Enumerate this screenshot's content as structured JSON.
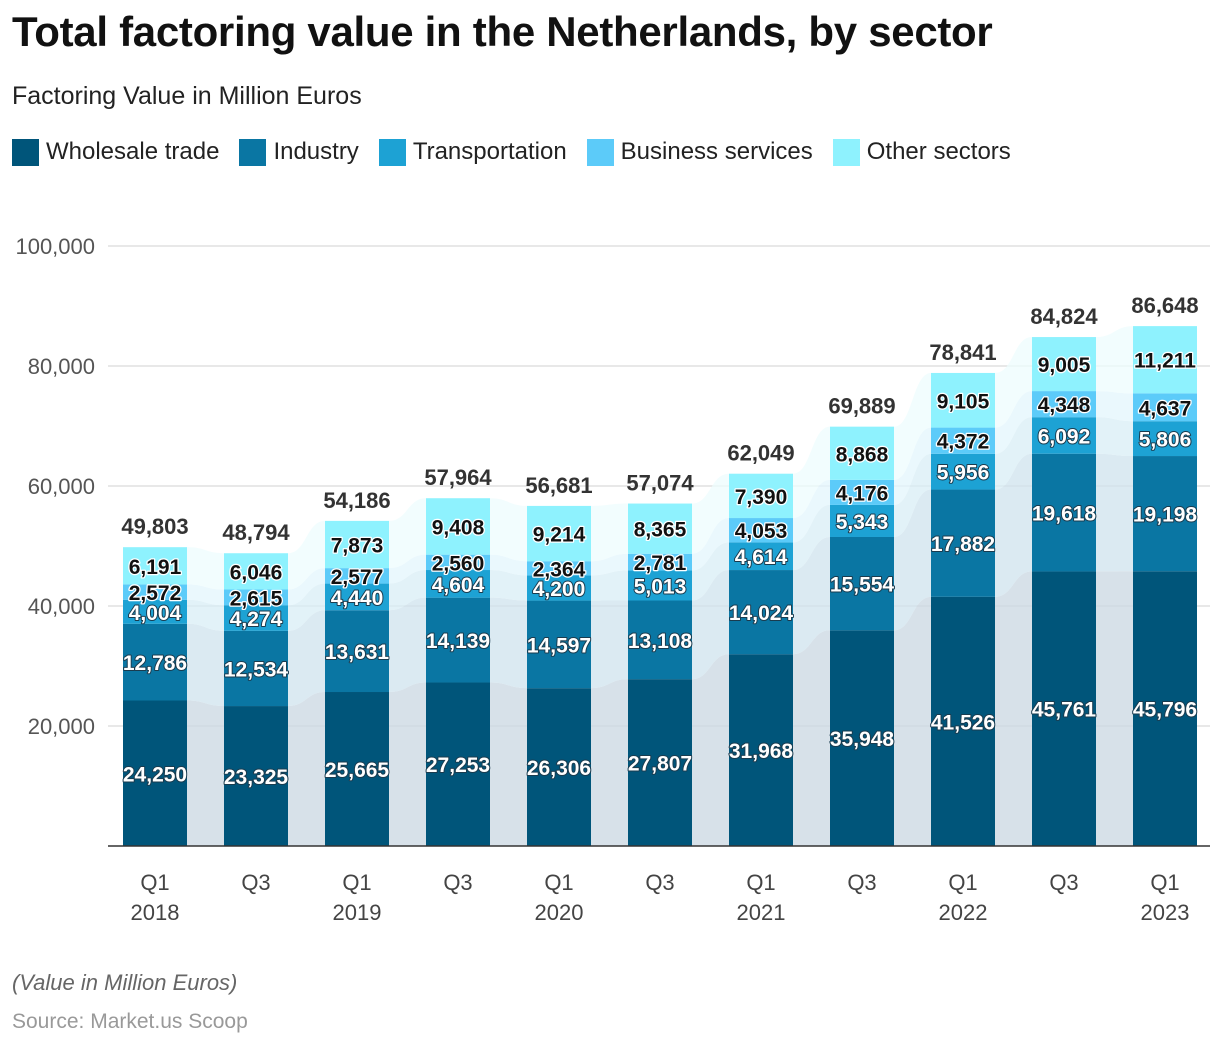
{
  "header": {
    "title": "Total factoring value in the Netherlands, by sector",
    "subtitle": "Factoring Value in Million Euros"
  },
  "legend": {
    "items": [
      {
        "label": "Wholesale trade",
        "color": "#00557a"
      },
      {
        "label": "Industry",
        "color": "#0a76a3"
      },
      {
        "label": "Transportation",
        "color": "#1da2d4"
      },
      {
        "label": "Business services",
        "color": "#5ccbf9"
      },
      {
        "label": "Other sectors",
        "color": "#8ef2fe"
      }
    ]
  },
  "footer": {
    "note": "(Value in Million Euros)",
    "source": "Source: Market.us Scoop"
  },
  "chart_data": {
    "type": "bar",
    "stacked": true,
    "title": "Total factoring value in the Netherlands, by sector",
    "subtitle": "Factoring Value in Million Euros",
    "xlabel": "",
    "ylabel": "",
    "ylim": [
      0,
      100000
    ],
    "yticks": [
      20000,
      40000,
      60000,
      80000,
      100000
    ],
    "ytick_labels": [
      "20,000",
      "40,000",
      "60,000",
      "80,000",
      "100,000"
    ],
    "grid": true,
    "legend_position": "top-left",
    "categories": [
      {
        "quarter": "Q1",
        "year": "2018"
      },
      {
        "quarter": "Q3",
        "year": ""
      },
      {
        "quarter": "Q1",
        "year": "2019"
      },
      {
        "quarter": "Q3",
        "year": ""
      },
      {
        "quarter": "Q1",
        "year": "2020"
      },
      {
        "quarter": "Q3",
        "year": ""
      },
      {
        "quarter": "Q1",
        "year": "2021"
      },
      {
        "quarter": "Q3",
        "year": ""
      },
      {
        "quarter": "Q1",
        "year": "2022"
      },
      {
        "quarter": "Q3",
        "year": ""
      },
      {
        "quarter": "Q1",
        "year": "2023"
      }
    ],
    "series": [
      {
        "name": "Wholesale trade",
        "color": "#00557a",
        "label_color": "#ffffff",
        "values": [
          24250,
          23325,
          25665,
          27253,
          26306,
          27807,
          31968,
          35948,
          41526,
          45761,
          45796
        ]
      },
      {
        "name": "Industry",
        "color": "#0a76a3",
        "label_color": "#ffffff",
        "values": [
          12786,
          12534,
          13631,
          14139,
          14597,
          13108,
          14024,
          15554,
          17882,
          19618,
          19198
        ]
      },
      {
        "name": "Transportation",
        "color": "#1da2d4",
        "label_color": "#ffffff",
        "values": [
          4004,
          4274,
          4440,
          4604,
          4200,
          5013,
          4614,
          5343,
          5956,
          6092,
          5806
        ]
      },
      {
        "name": "Business services",
        "color": "#5ccbf9",
        "label_color": "#111111",
        "values": [
          2572,
          2615,
          2577,
          2560,
          2364,
          2781,
          4053,
          4176,
          4372,
          4348,
          4637
        ]
      },
      {
        "name": "Other sectors",
        "color": "#8ef2fe",
        "label_color": "#111111",
        "values": [
          6191,
          6046,
          7873,
          9408,
          9214,
          8365,
          7390,
          8868,
          9105,
          9005,
          11211
        ]
      }
    ],
    "totals": [
      49803,
      48794,
      54186,
      57964,
      56681,
      57074,
      62049,
      69889,
      78841,
      84824,
      86648
    ]
  }
}
